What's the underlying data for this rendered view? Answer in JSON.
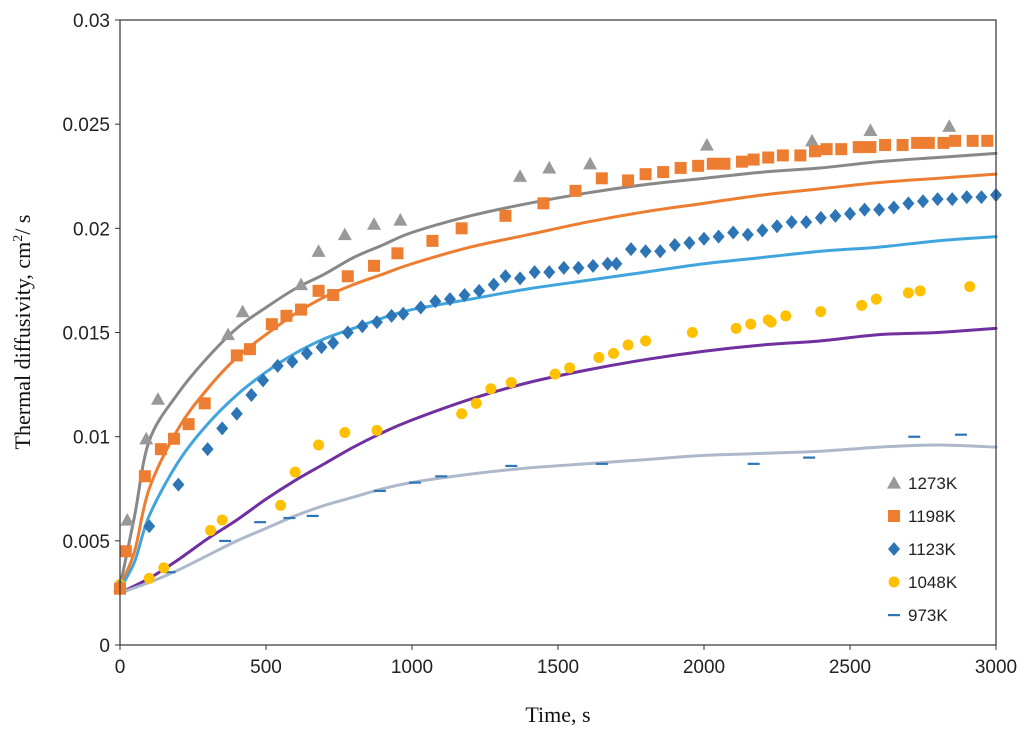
{
  "chart_data": {
    "type": "scatter",
    "title": "",
    "xlabel": "Time, s",
    "ylabel_prefix": "Thermal diffusivity, cm",
    "ylabel_sup": "2",
    "ylabel_suffix": "/ s",
    "xlim": [
      0,
      3000
    ],
    "ylim": [
      0,
      0.03
    ],
    "x_ticks": [
      0,
      500,
      1000,
      1500,
      2000,
      2500,
      3000
    ],
    "y_ticks": [
      0,
      0.005,
      0.01,
      0.015,
      0.02,
      0.025,
      0.03
    ],
    "x_tick_labels": [
      "0",
      "500",
      "1000",
      "1500",
      "2000",
      "2500",
      "3000"
    ],
    "y_tick_labels": [
      "0",
      "0.005",
      "0.01",
      "0.015",
      "0.02",
      "0.025",
      "0.03"
    ],
    "grid": false,
    "legend_position": "bottom-right",
    "series": [
      {
        "name": "1273K",
        "marker": "triangle",
        "color": "#999999",
        "line_color": "#888888",
        "points": [
          [
            0,
            0.0028
          ],
          [
            25,
            0.006
          ],
          [
            90,
            0.0099
          ],
          [
            130,
            0.0118
          ],
          [
            370,
            0.0149
          ],
          [
            420,
            0.016
          ],
          [
            620,
            0.0173
          ],
          [
            680,
            0.0189
          ],
          [
            770,
            0.0197
          ],
          [
            870,
            0.0202
          ],
          [
            960,
            0.0204
          ],
          [
            1370,
            0.0225
          ],
          [
            1470,
            0.0229
          ],
          [
            1610,
            0.0231
          ],
          [
            2010,
            0.024
          ],
          [
            2370,
            0.0242
          ],
          [
            2570,
            0.0247
          ],
          [
            2840,
            0.0249
          ]
        ],
        "curve": [
          [
            0,
            0.0028
          ],
          [
            50,
            0.0062
          ],
          [
            100,
            0.0098
          ],
          [
            200,
            0.0121
          ],
          [
            300,
            0.0138
          ],
          [
            400,
            0.0152
          ],
          [
            500,
            0.0162
          ],
          [
            600,
            0.0171
          ],
          [
            700,
            0.0178
          ],
          [
            800,
            0.0186
          ],
          [
            900,
            0.0192
          ],
          [
            1000,
            0.0198
          ],
          [
            1200,
            0.0206
          ],
          [
            1400,
            0.0212
          ],
          [
            1600,
            0.0217
          ],
          [
            1800,
            0.0221
          ],
          [
            2000,
            0.0224
          ],
          [
            2200,
            0.0227
          ],
          [
            2400,
            0.0229
          ],
          [
            2600,
            0.0232
          ],
          [
            2800,
            0.0234
          ],
          [
            3000,
            0.0236
          ]
        ]
      },
      {
        "name": "1198K",
        "marker": "square",
        "color": "#ED7D31",
        "line_color": "#ED7D31",
        "points": [
          [
            0,
            0.0027
          ],
          [
            20,
            0.0045
          ],
          [
            85,
            0.0081
          ],
          [
            140,
            0.0094
          ],
          [
            185,
            0.0099
          ],
          [
            235,
            0.0106
          ],
          [
            290,
            0.0116
          ],
          [
            400,
            0.0139
          ],
          [
            445,
            0.0142
          ],
          [
            520,
            0.0154
          ],
          [
            570,
            0.0158
          ],
          [
            620,
            0.0161
          ],
          [
            680,
            0.017
          ],
          [
            730,
            0.0168
          ],
          [
            780,
            0.0177
          ],
          [
            870,
            0.0182
          ],
          [
            950,
            0.0188
          ],
          [
            1070,
            0.0194
          ],
          [
            1170,
            0.02
          ],
          [
            1320,
            0.0206
          ],
          [
            1450,
            0.0212
          ],
          [
            1560,
            0.0218
          ],
          [
            1650,
            0.0224
          ],
          [
            1740,
            0.0223
          ],
          [
            1800,
            0.0226
          ],
          [
            1860,
            0.0227
          ],
          [
            1920,
            0.0229
          ],
          [
            1980,
            0.023
          ],
          [
            2030,
            0.0231
          ],
          [
            2070,
            0.0231
          ],
          [
            2130,
            0.0232
          ],
          [
            2170,
            0.0233
          ],
          [
            2220,
            0.0234
          ],
          [
            2270,
            0.0235
          ],
          [
            2330,
            0.0235
          ],
          [
            2380,
            0.0237
          ],
          [
            2420,
            0.0238
          ],
          [
            2470,
            0.0238
          ],
          [
            2530,
            0.0239
          ],
          [
            2570,
            0.0239
          ],
          [
            2620,
            0.024
          ],
          [
            2680,
            0.024
          ],
          [
            2730,
            0.0241
          ],
          [
            2770,
            0.0241
          ],
          [
            2820,
            0.0241
          ],
          [
            2860,
            0.0242
          ],
          [
            2920,
            0.0242
          ],
          [
            2970,
            0.0242
          ]
        ],
        "curve": [
          [
            0,
            0.0028
          ],
          [
            50,
            0.0045
          ],
          [
            100,
            0.0075
          ],
          [
            200,
            0.0104
          ],
          [
            300,
            0.0123
          ],
          [
            400,
            0.0138
          ],
          [
            500,
            0.0149
          ],
          [
            600,
            0.0159
          ],
          [
            700,
            0.0167
          ],
          [
            800,
            0.0173
          ],
          [
            900,
            0.0178
          ],
          [
            1000,
            0.0183
          ],
          [
            1200,
            0.0191
          ],
          [
            1400,
            0.0197
          ],
          [
            1600,
            0.0203
          ],
          [
            1800,
            0.0208
          ],
          [
            2000,
            0.0212
          ],
          [
            2200,
            0.0216
          ],
          [
            2400,
            0.0219
          ],
          [
            2600,
            0.0222
          ],
          [
            2800,
            0.0224
          ],
          [
            3000,
            0.0226
          ]
        ]
      },
      {
        "name": "1123K",
        "marker": "diamond",
        "color": "#2E75B6",
        "line_color": "#41A5DD",
        "points": [
          [
            0,
            0.0028
          ],
          [
            100,
            0.0057
          ],
          [
            200,
            0.0077
          ],
          [
            300,
            0.0094
          ],
          [
            350,
            0.0104
          ],
          [
            400,
            0.0111
          ],
          [
            450,
            0.012
          ],
          [
            490,
            0.0127
          ],
          [
            540,
            0.0134
          ],
          [
            590,
            0.0136
          ],
          [
            640,
            0.014
          ],
          [
            690,
            0.0143
          ],
          [
            730,
            0.0145
          ],
          [
            780,
            0.015
          ],
          [
            830,
            0.0153
          ],
          [
            880,
            0.0155
          ],
          [
            930,
            0.0158
          ],
          [
            970,
            0.0159
          ],
          [
            1030,
            0.0162
          ],
          [
            1080,
            0.0165
          ],
          [
            1130,
            0.0166
          ],
          [
            1180,
            0.0168
          ],
          [
            1230,
            0.017
          ],
          [
            1280,
            0.0173
          ],
          [
            1320,
            0.0177
          ],
          [
            1370,
            0.0176
          ],
          [
            1420,
            0.0179
          ],
          [
            1470,
            0.0179
          ],
          [
            1520,
            0.0181
          ],
          [
            1570,
            0.0181
          ],
          [
            1620,
            0.0182
          ],
          [
            1670,
            0.0183
          ],
          [
            1700,
            0.0183
          ],
          [
            1750,
            0.019
          ],
          [
            1800,
            0.0189
          ],
          [
            1850,
            0.0189
          ],
          [
            1900,
            0.0192
          ],
          [
            1950,
            0.0193
          ],
          [
            2000,
            0.0195
          ],
          [
            2050,
            0.0196
          ],
          [
            2100,
            0.0198
          ],
          [
            2150,
            0.0197
          ],
          [
            2200,
            0.0199
          ],
          [
            2250,
            0.0201
          ],
          [
            2300,
            0.0203
          ],
          [
            2350,
            0.0203
          ],
          [
            2400,
            0.0205
          ],
          [
            2450,
            0.0206
          ],
          [
            2500,
            0.0207
          ],
          [
            2550,
            0.0209
          ],
          [
            2600,
            0.0209
          ],
          [
            2650,
            0.021
          ],
          [
            2700,
            0.0212
          ],
          [
            2750,
            0.0213
          ],
          [
            2800,
            0.0214
          ],
          [
            2850,
            0.0214
          ],
          [
            2900,
            0.0215
          ],
          [
            2950,
            0.0215
          ],
          [
            3000,
            0.0216
          ]
        ],
        "curve": [
          [
            0,
            0.0027
          ],
          [
            50,
            0.004
          ],
          [
            100,
            0.0062
          ],
          [
            200,
            0.0088
          ],
          [
            300,
            0.0106
          ],
          [
            400,
            0.012
          ],
          [
            500,
            0.0131
          ],
          [
            600,
            0.014
          ],
          [
            700,
            0.0147
          ],
          [
            800,
            0.0152
          ],
          [
            900,
            0.0157
          ],
          [
            1000,
            0.0161
          ],
          [
            1200,
            0.0166
          ],
          [
            1400,
            0.0171
          ],
          [
            1600,
            0.0175
          ],
          [
            1800,
            0.0179
          ],
          [
            2000,
            0.0183
          ],
          [
            2200,
            0.0186
          ],
          [
            2400,
            0.0189
          ],
          [
            2600,
            0.0191
          ],
          [
            2800,
            0.0194
          ],
          [
            3000,
            0.0196
          ]
        ]
      },
      {
        "name": "1048K",
        "marker": "circle",
        "color": "#FFC000",
        "line_color": "#7030A0",
        "points": [
          [
            0,
            0.0029
          ],
          [
            100,
            0.0032
          ],
          [
            150,
            0.0037
          ],
          [
            310,
            0.0055
          ],
          [
            350,
            0.006
          ],
          [
            550,
            0.0067
          ],
          [
            600,
            0.0083
          ],
          [
            680,
            0.0096
          ],
          [
            770,
            0.0102
          ],
          [
            880,
            0.0103
          ],
          [
            1170,
            0.0111
          ],
          [
            1220,
            0.0116
          ],
          [
            1270,
            0.0123
          ],
          [
            1340,
            0.0126
          ],
          [
            1490,
            0.013
          ],
          [
            1540,
            0.0133
          ],
          [
            1640,
            0.0138
          ],
          [
            1690,
            0.014
          ],
          [
            1740,
            0.0144
          ],
          [
            1800,
            0.0146
          ],
          [
            1960,
            0.015
          ],
          [
            2110,
            0.0152
          ],
          [
            2160,
            0.0154
          ],
          [
            2220,
            0.0156
          ],
          [
            2230,
            0.0155
          ],
          [
            2280,
            0.0158
          ],
          [
            2400,
            0.016
          ],
          [
            2540,
            0.0163
          ],
          [
            2590,
            0.0166
          ],
          [
            2700,
            0.0169
          ],
          [
            2740,
            0.017
          ],
          [
            2910,
            0.0172
          ]
        ],
        "curve": [
          [
            0,
            0.0025
          ],
          [
            100,
            0.0032
          ],
          [
            200,
            0.0041
          ],
          [
            300,
            0.0051
          ],
          [
            400,
            0.006
          ],
          [
            500,
            0.007
          ],
          [
            600,
            0.0079
          ],
          [
            700,
            0.0087
          ],
          [
            800,
            0.0095
          ],
          [
            900,
            0.0102
          ],
          [
            1000,
            0.0108
          ],
          [
            1200,
            0.0118
          ],
          [
            1400,
            0.0126
          ],
          [
            1600,
            0.0132
          ],
          [
            1800,
            0.0137
          ],
          [
            2000,
            0.0141
          ],
          [
            2200,
            0.0144
          ],
          [
            2400,
            0.0146
          ],
          [
            2600,
            0.0149
          ],
          [
            2800,
            0.015
          ],
          [
            3000,
            0.0152
          ]
        ]
      },
      {
        "name": "973K",
        "marker": "dash",
        "color": "#2E75B6",
        "line_color": "#ADB9CA",
        "points": [
          [
            0,
            0.0026
          ],
          [
            170,
            0.0035
          ],
          [
            360,
            0.005
          ],
          [
            480,
            0.0059
          ],
          [
            580,
            0.0061
          ],
          [
            660,
            0.0062
          ],
          [
            890,
            0.0074
          ],
          [
            1010,
            0.0078
          ],
          [
            1100,
            0.0081
          ],
          [
            1340,
            0.0086
          ],
          [
            1650,
            0.0087
          ],
          [
            2170,
            0.0087
          ],
          [
            2360,
            0.009
          ],
          [
            2720,
            0.01
          ],
          [
            2880,
            0.0101
          ]
        ],
        "curve": [
          [
            0,
            0.0025
          ],
          [
            100,
            0.003
          ],
          [
            200,
            0.0036
          ],
          [
            300,
            0.0043
          ],
          [
            400,
            0.005
          ],
          [
            500,
            0.0056
          ],
          [
            600,
            0.0062
          ],
          [
            700,
            0.0067
          ],
          [
            800,
            0.0071
          ],
          [
            900,
            0.0075
          ],
          [
            1000,
            0.0078
          ],
          [
            1200,
            0.0082
          ],
          [
            1400,
            0.0085
          ],
          [
            1600,
            0.0087
          ],
          [
            1800,
            0.0089
          ],
          [
            2000,
            0.0091
          ],
          [
            2200,
            0.0092
          ],
          [
            2400,
            0.0093
          ],
          [
            2600,
            0.0095
          ],
          [
            2800,
            0.0096
          ],
          [
            3000,
            0.0095
          ]
        ]
      }
    ]
  }
}
